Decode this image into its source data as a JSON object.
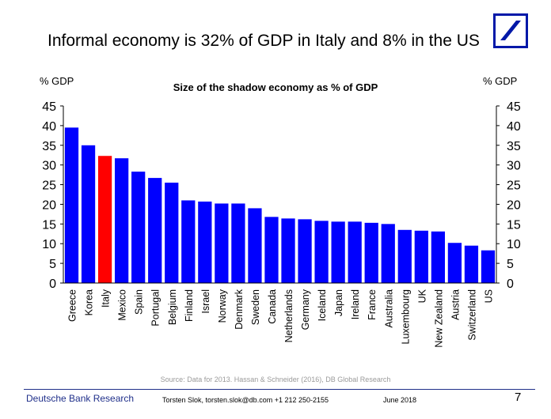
{
  "headline": "Informal economy is 32% of GDP in Italy and 8% in the US",
  "logo": {
    "icon": "deutsche-bank-slash-logo",
    "color": "#0018a8"
  },
  "chart_data": {
    "type": "bar",
    "title": "Size of the shadow economy as % of GDP",
    "ylabel_left": "% GDP",
    "ylabel_right": "% GDP",
    "ylim": [
      0,
      45
    ],
    "yticks": [
      0,
      5,
      10,
      15,
      20,
      25,
      30,
      35,
      40,
      45
    ],
    "categories": [
      "Greece",
      "Korea",
      "Italy",
      "Mexico",
      "Spain",
      "Portugal",
      "Belgium",
      "Finland",
      "Israel",
      "Norway",
      "Denmark",
      "Sweden",
      "Canada",
      "Netherlands",
      "Germany",
      "Iceland",
      "Japan",
      "Ireland",
      "France",
      "Australia",
      "Luxembourg",
      "UK",
      "New Zealand",
      "Austria",
      "Switzerland",
      "US"
    ],
    "values": [
      39.5,
      35,
      32.3,
      31.7,
      28.3,
      26.7,
      25.5,
      21,
      20.7,
      20.2,
      20.2,
      19,
      16.8,
      16.4,
      16.2,
      15.8,
      15.6,
      15.6,
      15.3,
      15,
      13.5,
      13.3,
      13.1,
      10.2,
      9.5,
      8.3
    ],
    "colors": {
      "default": "#0000ff",
      "highlight": "#ff0000"
    },
    "highlight": "Italy",
    "grid": false
  },
  "source": "Source: Data for 2013. Hassan & Schneider (2016), DB Global Research",
  "footer": {
    "brand": "Deutsche Bank Research",
    "author": "Torsten Slok, torsten.slok@db.com  +1 212 250-2155",
    "date": "June 2018",
    "page": "7"
  }
}
